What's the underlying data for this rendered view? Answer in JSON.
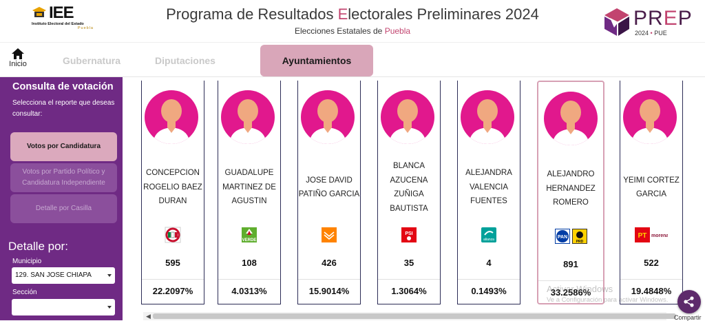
{
  "header": {
    "iee": {
      "brand": "IEE",
      "sub": "Instituto Electoral del Estado",
      "sub2": "Puebla"
    },
    "title_pre": "Programa de Resultados ",
    "title_hl": "E",
    "title_post": "lectorales Preliminares 2024",
    "subtitle_pre": "Elecciones Estatales de ",
    "subtitle_hl": "Puebla",
    "prep": {
      "pre": "PR",
      "e": "E",
      "post": "P",
      "year": "2024",
      "state": "PUE"
    }
  },
  "nav": {
    "home_label": "Inicio",
    "tabs": [
      {
        "label": "Gubernatura"
      },
      {
        "label": "Diputaciones"
      },
      {
        "label": "Ayuntamientos"
      }
    ]
  },
  "sidebar": {
    "title": "Consulta de votación",
    "desc": "Selecciona el reporte que deseas consultar:",
    "buttons": [
      {
        "label": "Votos por Candidatura"
      },
      {
        "label": "Votos por Partido Político y Candidatura Independiente"
      },
      {
        "label": "Detalle por Casilla"
      }
    ],
    "detalle_title": "Detalle por:",
    "municipio_label": "Municipio",
    "municipio_value": "129. SAN JOSE CHIAPA",
    "seccion_label": "Sección",
    "seccion_value": ""
  },
  "candidates": [
    {
      "name": "CONCEPCION ROGELIO BAEZ DURAN",
      "party": "PRI",
      "votes": "595",
      "pct": "22.2097%"
    },
    {
      "name": "GUADALUPE MARTINEZ DE AGUSTIN",
      "party": "VERDE",
      "votes": "108",
      "pct": "4.0313%"
    },
    {
      "name": "JOSE DAVID PATIÑO GARCIA",
      "party": "MC",
      "votes": "426",
      "pct": "15.9014%"
    },
    {
      "name": "BLANCA AZUCENA ZUÑIGA BAUTISTA",
      "party": "PSI",
      "votes": "35",
      "pct": "1.3064%"
    },
    {
      "name": "ALEJANDRA VALENCIA FUENTES",
      "party": "ALIANZA",
      "votes": "4",
      "pct": "0.1493%"
    },
    {
      "name": "ALEJANDRO HERNANDEZ ROMERO",
      "party": "PAN PRD",
      "votes": "891",
      "pct": "33.2586%"
    },
    {
      "name": "YEIMI CORTEZ GARCIA",
      "party": "PT MORENA",
      "votes": "522",
      "pct": "19.4848%"
    }
  ],
  "party_labels": {
    "verde": "VERDE",
    "psi": "PSI",
    "alianza": "alianza",
    "pan": "PAN",
    "prd": "PRD",
    "pt": "PT",
    "morena": "morena"
  },
  "watermark": {
    "line1": "Activar Windows",
    "line2": "Ve a Configuración para activar Windows."
  },
  "share_label": "Compartir",
  "colors": {
    "purple": "#6f2a84",
    "pink_active": "#dba9bd",
    "avatar": "#e1188d",
    "accent": "#c2446f"
  }
}
